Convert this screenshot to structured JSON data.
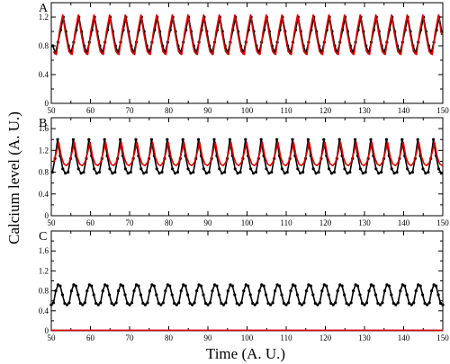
{
  "figure": {
    "ylabel": "Calcium level (A. U.)",
    "xlabel": "Time (A. U.)"
  },
  "chart_data": [
    {
      "type": "line",
      "panel": "A",
      "xlim": [
        50,
        150
      ],
      "ylim": [
        0,
        1.4
      ],
      "xticks": [
        "50",
        "60",
        "70",
        "80",
        "90",
        "100",
        "110",
        "120",
        "130",
        "140",
        "150"
      ],
      "yticks": [
        "0",
        "0.4",
        "0.8",
        "1.2"
      ],
      "grid": false,
      "series": [
        {
          "color": "#000000",
          "marker": "circle",
          "period": 4.0,
          "phase": 52.4,
          "values": [
            1.02,
            1.2,
            1.0,
            0.8,
            0.7,
            0.85
          ]
        },
        {
          "color": "#dd0000",
          "marker": "none",
          "period": 4.0,
          "phase": 52.9,
          "values": [
            1.23,
            0.95,
            0.72,
            0.68,
            1.0
          ]
        }
      ]
    },
    {
      "type": "line",
      "panel": "B",
      "xlim": [
        50,
        150
      ],
      "ylim": [
        0,
        1.8
      ],
      "xticks": [
        "50",
        "60",
        "70",
        "80",
        "90",
        "100",
        "110",
        "120",
        "130",
        "140",
        "150"
      ],
      "yticks": [
        "0",
        "0.4",
        "0.8",
        "1.2",
        "1.6"
      ],
      "grid": false,
      "series": [
        {
          "color": "#000000",
          "marker": "circle",
          "period": 4.0,
          "phase": 51.6,
          "values": [
            1.4,
            1.1,
            0.86,
            0.78,
            0.8,
            1.05
          ]
        },
        {
          "color": "#dd0000",
          "marker": "none",
          "period": 4.0,
          "phase": 51.9,
          "values": [
            1.35,
            1.08,
            0.95,
            0.92,
            0.98,
            1.15
          ]
        }
      ]
    },
    {
      "type": "line",
      "panel": "C",
      "xlim": [
        50,
        150
      ],
      "ylim": [
        0,
        2.0
      ],
      "xticks": [
        "50",
        "60",
        "70",
        "80",
        "90",
        "100",
        "110",
        "120",
        "130",
        "140",
        "150"
      ],
      "yticks": [
        "0",
        "0.4",
        "0.8",
        "1.2",
        "1.6"
      ],
      "grid": false,
      "series": [
        {
          "color": "#000000",
          "marker": "circle",
          "period": 4.0,
          "phase": 50.0,
          "values": [
            0.52,
            0.56,
            0.8,
            0.92,
            0.9,
            0.72,
            0.55
          ]
        },
        {
          "color": "#dd0000",
          "marker": "none",
          "period": 4.0,
          "phase": 50.0,
          "values": [
            0.01
          ]
        }
      ]
    }
  ]
}
